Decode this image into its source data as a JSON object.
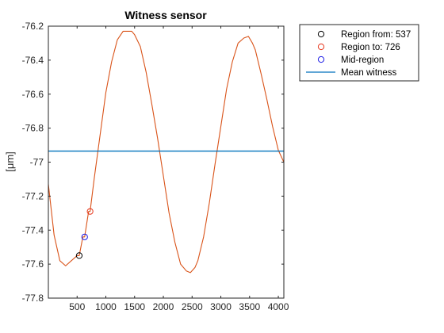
{
  "chart_data": {
    "type": "line",
    "title": "Witness sensor",
    "xlabel": "",
    "ylabel": "[μm]",
    "xlim": [
      0,
      4096
    ],
    "ylim": [
      -77.8,
      -76.2
    ],
    "x_ticks": [
      500,
      1000,
      1500,
      2000,
      2500,
      3000,
      3500,
      4000
    ],
    "y_ticks": [
      -76.2,
      -76.4,
      -76.6,
      -76.8,
      -77,
      -77.2,
      -77.4,
      -77.6,
      -77.8
    ],
    "x_tick_labels": [
      "500",
      "1000",
      "1500",
      "2000",
      "2500",
      "3000",
      "3500",
      "4000"
    ],
    "y_tick_labels": [
      "-76.2",
      "-76.4",
      "-76.6",
      "-76.8",
      "-77",
      "-77.2",
      "-77.4",
      "-77.6",
      "-77.8"
    ],
    "grid": false,
    "legend_position": "outside-top-right",
    "series": [
      {
        "color": "#d95319",
        "x": [
          0,
          100,
          200,
          300,
          400,
          500,
          537,
          600,
          631,
          700,
          726,
          800,
          900,
          1000,
          1100,
          1200,
          1300,
          1400,
          1450,
          1500,
          1600,
          1700,
          1800,
          1900,
          2000,
          2100,
          2200,
          2300,
          2400,
          2470,
          2550,
          2600,
          2700,
          2800,
          2900,
          3000,
          3100,
          3200,
          3300,
          3400,
          3480,
          3550,
          3600,
          3700,
          3800,
          3900,
          4000,
          4096
        ],
        "y": [
          -77.13,
          -77.43,
          -77.58,
          -77.61,
          -77.58,
          -77.55,
          -77.55,
          -77.44,
          -77.44,
          -77.29,
          -77.29,
          -77.09,
          -76.84,
          -76.59,
          -76.41,
          -76.28,
          -76.23,
          -76.23,
          -76.23,
          -76.25,
          -76.32,
          -76.47,
          -76.66,
          -76.86,
          -77.08,
          -77.3,
          -77.47,
          -77.6,
          -77.64,
          -77.65,
          -77.62,
          -77.58,
          -77.44,
          -77.24,
          -77.01,
          -76.79,
          -76.57,
          -76.41,
          -76.3,
          -76.27,
          -76.26,
          -76.3,
          -76.34,
          -76.48,
          -76.63,
          -76.79,
          -76.93,
          -77.0
        ]
      },
      {
        "name": "Mean witness",
        "color": "#0072bd",
        "x": [
          0,
          4096
        ],
        "y": [
          -76.935,
          -76.935
        ]
      }
    ],
    "markers": [
      {
        "name": "Region from: 537",
        "color": "#000000",
        "x": 537,
        "y": -77.55
      },
      {
        "name": "Region to: 726",
        "color": "#e6341a",
        "x": 726,
        "y": -77.29
      },
      {
        "name": "Mid-region",
        "color": "#1a1ae6",
        "x": 631,
        "y": -77.44
      }
    ],
    "legend": [
      {
        "label": "Region from: 537",
        "kind": "circle",
        "color": "#000000"
      },
      {
        "label": "Region to: 726",
        "kind": "circle",
        "color": "#e6341a"
      },
      {
        "label": "Mid-region",
        "kind": "circle",
        "color": "#1a1ae6"
      },
      {
        "label": "Mean witness",
        "kind": "line",
        "color": "#0072bd"
      }
    ]
  }
}
